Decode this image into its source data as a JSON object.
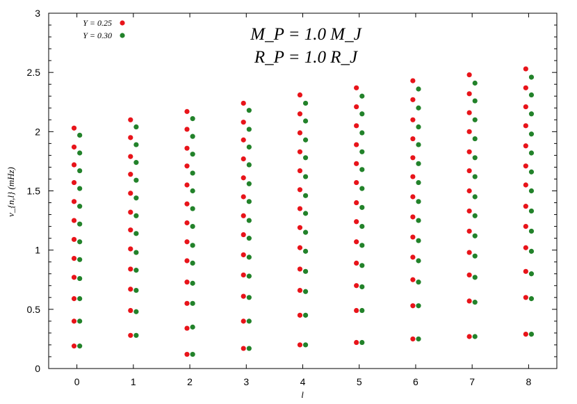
{
  "chart_data": {
    "type": "scatter",
    "title": "",
    "annotations": [
      "M_P = 1.0 M_J",
      "R_P = 1.0 R_J"
    ],
    "xlabel": "l",
    "ylabel": "ν_{n,l} (mHz)",
    "xlim": [
      -0.5,
      8.5
    ],
    "ylim": [
      0,
      3
    ],
    "xticks": [
      0,
      1,
      2,
      3,
      4,
      5,
      6,
      7,
      8
    ],
    "yticks": [
      0,
      0.5,
      1,
      1.5,
      2,
      2.5,
      3
    ],
    "ytick_labels": [
      "0",
      "0.5",
      "1",
      "1.5",
      "2",
      "2.5",
      "3"
    ],
    "grid": false,
    "legend_position": "top-left",
    "series": [
      {
        "name": "Y = 0.25",
        "color": "#e8141a",
        "x_offset": -0.05,
        "points_by_l": [
          [
            0.19,
            0.4,
            0.59,
            0.77,
            0.93,
            1.09,
            1.25,
            1.41,
            1.57,
            1.72,
            1.87,
            2.03
          ],
          [
            0.28,
            0.49,
            0.67,
            0.84,
            1.01,
            1.17,
            1.32,
            1.48,
            1.64,
            1.79,
            1.95,
            2.1
          ],
          [
            0.12,
            0.34,
            0.55,
            0.73,
            0.91,
            1.07,
            1.23,
            1.39,
            1.55,
            1.71,
            1.86,
            2.02,
            2.17
          ],
          [
            0.17,
            0.4,
            0.61,
            0.79,
            0.96,
            1.13,
            1.29,
            1.45,
            1.61,
            1.77,
            1.93,
            2.08,
            2.24
          ],
          [
            0.2,
            0.45,
            0.66,
            0.84,
            1.02,
            1.19,
            1.35,
            1.51,
            1.67,
            1.83,
            1.99,
            2.15,
            2.31
          ],
          [
            0.22,
            0.49,
            0.7,
            0.89,
            1.07,
            1.24,
            1.4,
            1.57,
            1.73,
            1.89,
            2.05,
            2.21,
            2.37
          ],
          [
            0.25,
            0.53,
            0.75,
            0.94,
            1.11,
            1.28,
            1.45,
            1.62,
            1.78,
            1.94,
            2.1,
            2.27,
            2.43
          ],
          [
            0.27,
            0.57,
            0.79,
            0.98,
            1.16,
            1.33,
            1.5,
            1.67,
            1.83,
            2.0,
            2.16,
            2.32,
            2.48
          ],
          [
            0.29,
            0.6,
            0.82,
            1.02,
            1.2,
            1.37,
            1.55,
            1.71,
            1.88,
            2.05,
            2.21,
            2.37,
            2.53
          ]
        ]
      },
      {
        "name": "Y = 0.30",
        "color": "#22822a",
        "x_offset": 0.05,
        "points_by_l": [
          [
            0.19,
            0.4,
            0.59,
            0.76,
            0.92,
            1.07,
            1.22,
            1.37,
            1.52,
            1.67,
            1.82,
            1.97
          ],
          [
            0.28,
            0.48,
            0.66,
            0.83,
            0.98,
            1.14,
            1.29,
            1.44,
            1.59,
            1.74,
            1.89,
            2.04
          ],
          [
            0.12,
            0.35,
            0.55,
            0.72,
            0.89,
            1.04,
            1.2,
            1.35,
            1.5,
            1.65,
            1.81,
            1.96,
            2.11
          ],
          [
            0.17,
            0.4,
            0.6,
            0.78,
            0.94,
            1.1,
            1.25,
            1.41,
            1.56,
            1.72,
            1.87,
            2.02,
            2.18
          ],
          [
            0.2,
            0.45,
            0.65,
            0.82,
            0.99,
            1.15,
            1.31,
            1.46,
            1.62,
            1.78,
            1.93,
            2.09,
            2.24
          ],
          [
            0.22,
            0.49,
            0.69,
            0.87,
            1.04,
            1.2,
            1.36,
            1.52,
            1.68,
            1.83,
            1.99,
            2.15,
            2.3
          ],
          [
            0.25,
            0.53,
            0.73,
            0.91,
            1.08,
            1.25,
            1.41,
            1.57,
            1.73,
            1.89,
            2.04,
            2.2,
            2.36
          ],
          [
            0.27,
            0.56,
            0.77,
            0.95,
            1.12,
            1.29,
            1.45,
            1.62,
            1.78,
            1.94,
            2.1,
            2.26,
            2.41
          ],
          [
            0.29,
            0.59,
            0.8,
            0.99,
            1.16,
            1.33,
            1.5,
            1.66,
            1.82,
            1.98,
            2.15,
            2.31,
            2.46
          ]
        ]
      }
    ]
  },
  "legend": [
    {
      "label": "Y = 0.25",
      "color": "#e8141a"
    },
    {
      "label": "Y = 0.30",
      "color": "#22822a"
    }
  ]
}
